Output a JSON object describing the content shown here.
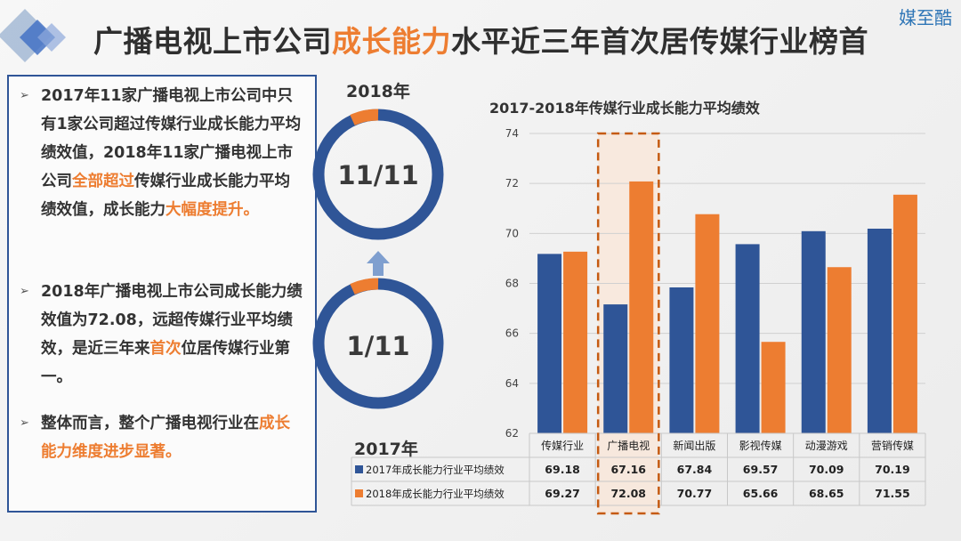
{
  "brand": "媒至酷",
  "title": {
    "part1": "广播电视上市公司",
    "highlight": "成长能力",
    "part2": "水平近三年首次居传媒行业榜首"
  },
  "left_text": {
    "p1": [
      {
        "text": "2017年11家广播电视上市公司中只有1家公司超过传媒行业成长能力平均绩效值，2018年11家广播电视上市公司",
        "orange": false
      },
      {
        "text": "全部超过",
        "orange": true
      },
      {
        "text": "传媒行业成长能力平均绩效值，成长能力",
        "orange": false
      },
      {
        "text": "大幅度提升。",
        "orange": true
      }
    ],
    "p2": [
      {
        "text": "2018年广播电视上市公司成长能力绩效值为72.08，远超传媒行业平均绩效，是近三年来",
        "orange": false
      },
      {
        "text": "首次",
        "orange": true
      },
      {
        "text": "位居传媒行业第一。",
        "orange": false
      }
    ],
    "p3": [
      {
        "text": "整体而言，整个广播电视行业在",
        "orange": false
      },
      {
        "text": "成长能力维度进步显著。",
        "orange": true
      }
    ]
  },
  "donuts": {
    "year_top": "2018年",
    "label_top": "11/11",
    "year_bottom": "2017年",
    "label_bottom": "1/11",
    "colors": {
      "main": "#2F5597",
      "accent": "#ED7D31"
    }
  },
  "chart_data": {
    "type": "bar",
    "title": "2017-2018年传媒行业成长能力平均绩效",
    "categories": [
      "传媒行业",
      "广播电视",
      "新闻出版",
      "影视传媒",
      "动漫游戏",
      "营销传媒"
    ],
    "series": [
      {
        "name": "2017年成长能力行业平均绩效",
        "values": [
          69.18,
          67.16,
          67.84,
          69.57,
          70.09,
          70.19
        ],
        "color": "#2F5597"
      },
      {
        "name": "2018年成长能力行业平均绩效",
        "values": [
          69.27,
          72.08,
          70.77,
          65.66,
          68.65,
          71.55
        ],
        "color": "#ED7D31"
      }
    ],
    "ylim": [
      62,
      74
    ],
    "yticks": [
      62,
      64,
      66,
      68,
      70,
      72,
      74
    ],
    "grid": true,
    "highlight_category": "广播电视",
    "data_table": true
  }
}
